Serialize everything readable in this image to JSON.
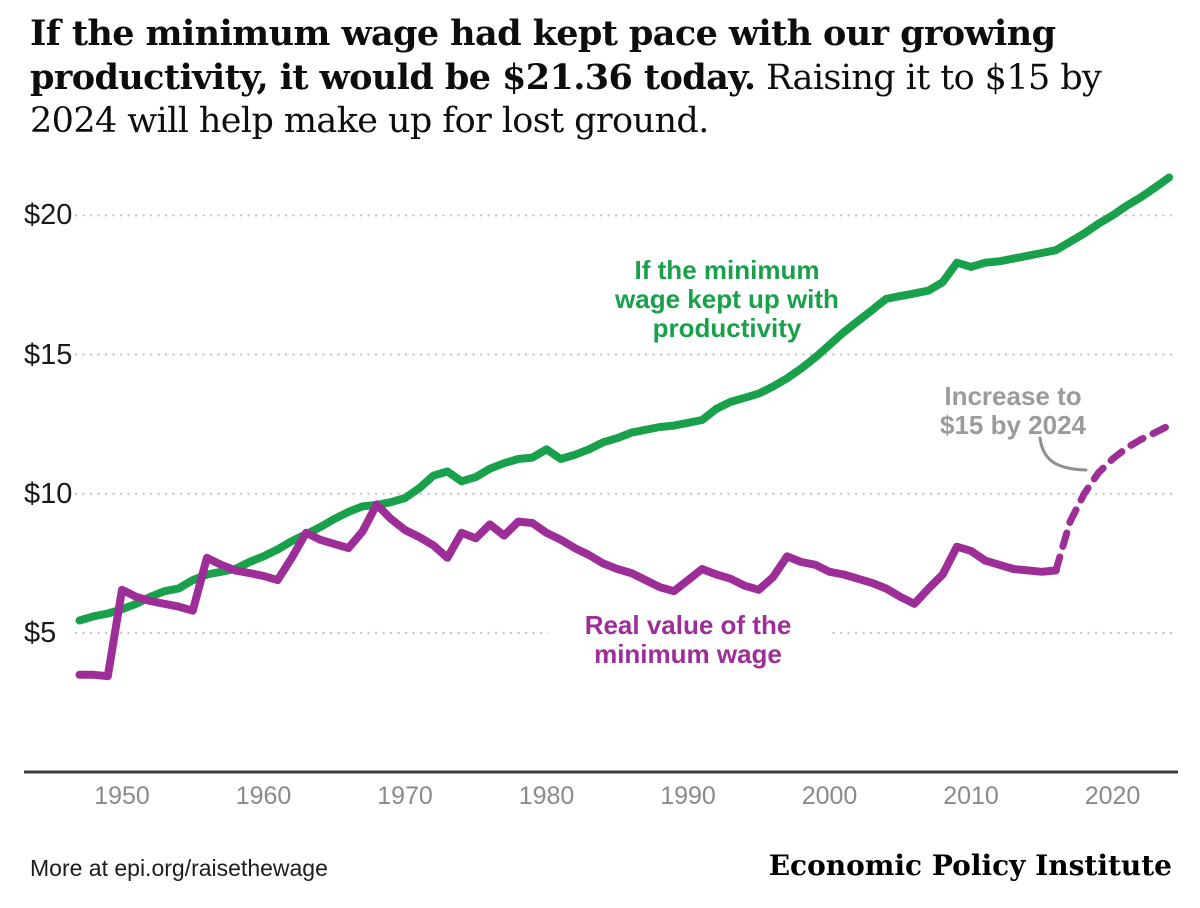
{
  "headline": {
    "line1_bold": "If the minimum wage had kept pace with our growing",
    "line2_bold": "productivity, it would be $21.36 today.",
    "line2_regular": " Raising it to $15 by",
    "line3_regular": "2024 will help make up for lost ground."
  },
  "annotations": {
    "productivity": {
      "lines": [
        "If the minimum",
        "wage kept up with",
        "productivity"
      ]
    },
    "minwage": {
      "lines": [
        "Real value of the",
        "minimum wage"
      ]
    },
    "increase": {
      "lines": [
        "Increase to",
        "$15 by 2024"
      ]
    }
  },
  "footer": {
    "left": "More at epi.org/raisethewage",
    "right": "Economic Policy Institute"
  },
  "colors": {
    "productivity_green": "#19a04b",
    "minwage_purple": "#9e2e97",
    "annotation_gray": "#9b9b9b",
    "gridline_gray": "#c8c8c8",
    "axis_dark": "#3b3b3b",
    "callout_gray": "#8f8f8f"
  },
  "chart_data": {
    "type": "line",
    "x_axis": {
      "ticks": [
        1950,
        1960,
        1970,
        1980,
        1990,
        2000,
        2010,
        2020
      ],
      "range": [
        1947,
        2024
      ]
    },
    "y_axis": {
      "ticks": [
        {
          "label": "$5",
          "value": 5
        },
        {
          "label": "$10",
          "value": 10
        },
        {
          "label": "$15",
          "value": 15
        },
        {
          "label": "$20",
          "value": 20
        }
      ],
      "range": [
        0,
        21.6
      ],
      "grid": "dotted"
    },
    "legend_position": "inline-labels",
    "series": [
      {
        "name": "If the minimum wage kept up with productivity",
        "color": "#19a04b",
        "dashed": false,
        "points": [
          [
            1947,
            5.45
          ],
          [
            1948,
            5.6
          ],
          [
            1949,
            5.7
          ],
          [
            1950,
            5.85
          ],
          [
            1951,
            6.05
          ],
          [
            1952,
            6.3
          ],
          [
            1953,
            6.5
          ],
          [
            1954,
            6.6
          ],
          [
            1955,
            6.9
          ],
          [
            1956,
            7.1
          ],
          [
            1957,
            7.2
          ],
          [
            1958,
            7.3
          ],
          [
            1959,
            7.55
          ],
          [
            1960,
            7.75
          ],
          [
            1961,
            8.0
          ],
          [
            1962,
            8.3
          ],
          [
            1963,
            8.55
          ],
          [
            1964,
            8.8
          ],
          [
            1965,
            9.1
          ],
          [
            1966,
            9.35
          ],
          [
            1967,
            9.55
          ],
          [
            1968,
            9.6
          ],
          [
            1969,
            9.7
          ],
          [
            1970,
            9.85
          ],
          [
            1971,
            10.2
          ],
          [
            1972,
            10.65
          ],
          [
            1973,
            10.8
          ],
          [
            1974,
            10.45
          ],
          [
            1975,
            10.6
          ],
          [
            1976,
            10.9
          ],
          [
            1977,
            11.1
          ],
          [
            1978,
            11.25
          ],
          [
            1979,
            11.3
          ],
          [
            1980,
            11.6
          ],
          [
            1981,
            11.25
          ],
          [
            1982,
            11.4
          ],
          [
            1983,
            11.6
          ],
          [
            1984,
            11.85
          ],
          [
            1985,
            12.0
          ],
          [
            1986,
            12.2
          ],
          [
            1987,
            12.3
          ],
          [
            1988,
            12.4
          ],
          [
            1989,
            12.45
          ],
          [
            1990,
            12.55
          ],
          [
            1991,
            12.65
          ],
          [
            1992,
            13.05
          ],
          [
            1993,
            13.3
          ],
          [
            1994,
            13.45
          ],
          [
            1995,
            13.6
          ],
          [
            1996,
            13.85
          ],
          [
            1997,
            14.15
          ],
          [
            1998,
            14.5
          ],
          [
            1999,
            14.9
          ],
          [
            2000,
            15.35
          ],
          [
            2001,
            15.8
          ],
          [
            2002,
            16.2
          ],
          [
            2003,
            16.6
          ],
          [
            2004,
            17.0
          ],
          [
            2005,
            17.1
          ],
          [
            2006,
            17.2
          ],
          [
            2007,
            17.3
          ],
          [
            2008,
            17.6
          ],
          [
            2009,
            18.3
          ],
          [
            2010,
            18.15
          ],
          [
            2011,
            18.3
          ],
          [
            2012,
            18.35
          ],
          [
            2013,
            18.45
          ],
          [
            2014,
            18.55
          ],
          [
            2015,
            18.65
          ],
          [
            2016,
            18.75
          ],
          [
            2017,
            19.05
          ],
          [
            2018,
            19.35
          ],
          [
            2019,
            19.7
          ],
          [
            2020,
            20.0
          ],
          [
            2021,
            20.35
          ],
          [
            2022,
            20.65
          ],
          [
            2023,
            21.0
          ],
          [
            2024,
            21.36
          ]
        ]
      },
      {
        "name": "Real value of the minimum wage",
        "color": "#9e2e97",
        "dashed": false,
        "points": [
          [
            1947,
            3.5
          ],
          [
            1948,
            3.5
          ],
          [
            1949,
            3.45
          ],
          [
            1950,
            6.55
          ],
          [
            1951,
            6.3
          ],
          [
            1952,
            6.15
          ],
          [
            1953,
            6.05
          ],
          [
            1954,
            5.95
          ],
          [
            1955,
            5.8
          ],
          [
            1956,
            7.7
          ],
          [
            1957,
            7.45
          ],
          [
            1958,
            7.25
          ],
          [
            1959,
            7.15
          ],
          [
            1960,
            7.05
          ],
          [
            1961,
            6.9
          ],
          [
            1962,
            7.7
          ],
          [
            1963,
            8.6
          ],
          [
            1964,
            8.35
          ],
          [
            1965,
            8.2
          ],
          [
            1966,
            8.05
          ],
          [
            1967,
            8.65
          ],
          [
            1968,
            9.62
          ],
          [
            1969,
            9.1
          ],
          [
            1970,
            8.7
          ],
          [
            1971,
            8.45
          ],
          [
            1972,
            8.15
          ],
          [
            1973,
            7.7
          ],
          [
            1974,
            8.6
          ],
          [
            1975,
            8.4
          ],
          [
            1976,
            8.9
          ],
          [
            1977,
            8.5
          ],
          [
            1978,
            9.0
          ],
          [
            1979,
            8.95
          ],
          [
            1980,
            8.6
          ],
          [
            1981,
            8.35
          ],
          [
            1982,
            8.05
          ],
          [
            1983,
            7.8
          ],
          [
            1984,
            7.5
          ],
          [
            1985,
            7.3
          ],
          [
            1986,
            7.15
          ],
          [
            1987,
            6.9
          ],
          [
            1988,
            6.65
          ],
          [
            1989,
            6.5
          ],
          [
            1990,
            6.9
          ],
          [
            1991,
            7.3
          ],
          [
            1992,
            7.1
          ],
          [
            1993,
            6.95
          ],
          [
            1994,
            6.7
          ],
          [
            1995,
            6.55
          ],
          [
            1996,
            7.0
          ],
          [
            1997,
            7.75
          ],
          [
            1998,
            7.55
          ],
          [
            1999,
            7.45
          ],
          [
            2000,
            7.2
          ],
          [
            2001,
            7.1
          ],
          [
            2002,
            6.95
          ],
          [
            2003,
            6.8
          ],
          [
            2004,
            6.6
          ],
          [
            2005,
            6.3
          ],
          [
            2006,
            6.05
          ],
          [
            2007,
            6.6
          ],
          [
            2008,
            7.1
          ],
          [
            2009,
            8.1
          ],
          [
            2010,
            7.95
          ],
          [
            2011,
            7.6
          ],
          [
            2012,
            7.45
          ],
          [
            2013,
            7.3
          ],
          [
            2014,
            7.25
          ],
          [
            2015,
            7.2
          ],
          [
            2016,
            7.25
          ]
        ]
      },
      {
        "name": "Increase to $15 by 2024 (proposed)",
        "color": "#9e2e97",
        "dashed": true,
        "points": [
          [
            2016,
            7.25
          ],
          [
            2017,
            9.0
          ],
          [
            2018,
            10.0
          ],
          [
            2019,
            10.75
          ],
          [
            2020,
            11.25
          ],
          [
            2021,
            11.65
          ],
          [
            2022,
            11.95
          ],
          [
            2023,
            12.2
          ],
          [
            2024,
            12.45
          ]
        ]
      }
    ]
  }
}
